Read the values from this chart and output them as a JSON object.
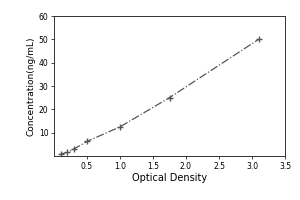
{
  "x": [
    0.1,
    0.2,
    0.31,
    0.5,
    1.0,
    1.75,
    3.1
  ],
  "y": [
    0.78,
    1.56,
    3.12,
    6.25,
    12.5,
    25.0,
    50.0
  ],
  "xlabel": "Optical Density",
  "ylabel": "Concentration(ng/mL)",
  "xlim": [
    0,
    3.5
  ],
  "ylim": [
    0,
    60
  ],
  "xticks": [
    0.5,
    1.0,
    1.5,
    2.0,
    2.5,
    3.0,
    3.5
  ],
  "yticks": [
    10,
    20,
    30,
    40,
    50,
    60
  ],
  "marker": "+",
  "marker_color": "#555555",
  "line_color": "#555555",
  "line_style": "-.",
  "marker_size": 5,
  "line_width": 0.9,
  "bg_color": "#ffffff",
  "xlabel_fontsize": 7,
  "ylabel_fontsize": 6.5,
  "tick_fontsize": 5.5
}
